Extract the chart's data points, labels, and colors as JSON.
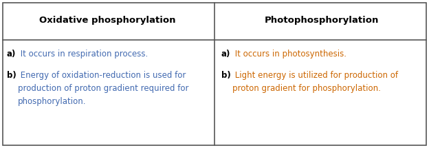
{
  "header_col1": "Oxidative phosphorylation",
  "header_col2": "Photophosphorylation",
  "header_color": "#000000",
  "body_color_bold": "#000000",
  "body_color_left": "#4169b0",
  "body_color_right": "#cc6600",
  "border_color": "#555555",
  "bg_color": "#ffffff",
  "col1_a_bold": "a)",
  "col1_a_text": " It occurs in respiration process.",
  "col1_b_bold": "b)",
  "col1_b_text": " Energy of oxidation-reduction is used for\nproduction of proton gradient required for\nphosphorylation.",
  "col2_a_bold": "a)",
  "col2_a_text": " It occurs in photosynthesis.",
  "col2_b_bold": "b)",
  "col2_b_text": " Light energy is utilized for production of\nproton gradient for phosphorylation.",
  "figsize": [
    6.24,
    2.15
  ],
  "dpi": 100
}
